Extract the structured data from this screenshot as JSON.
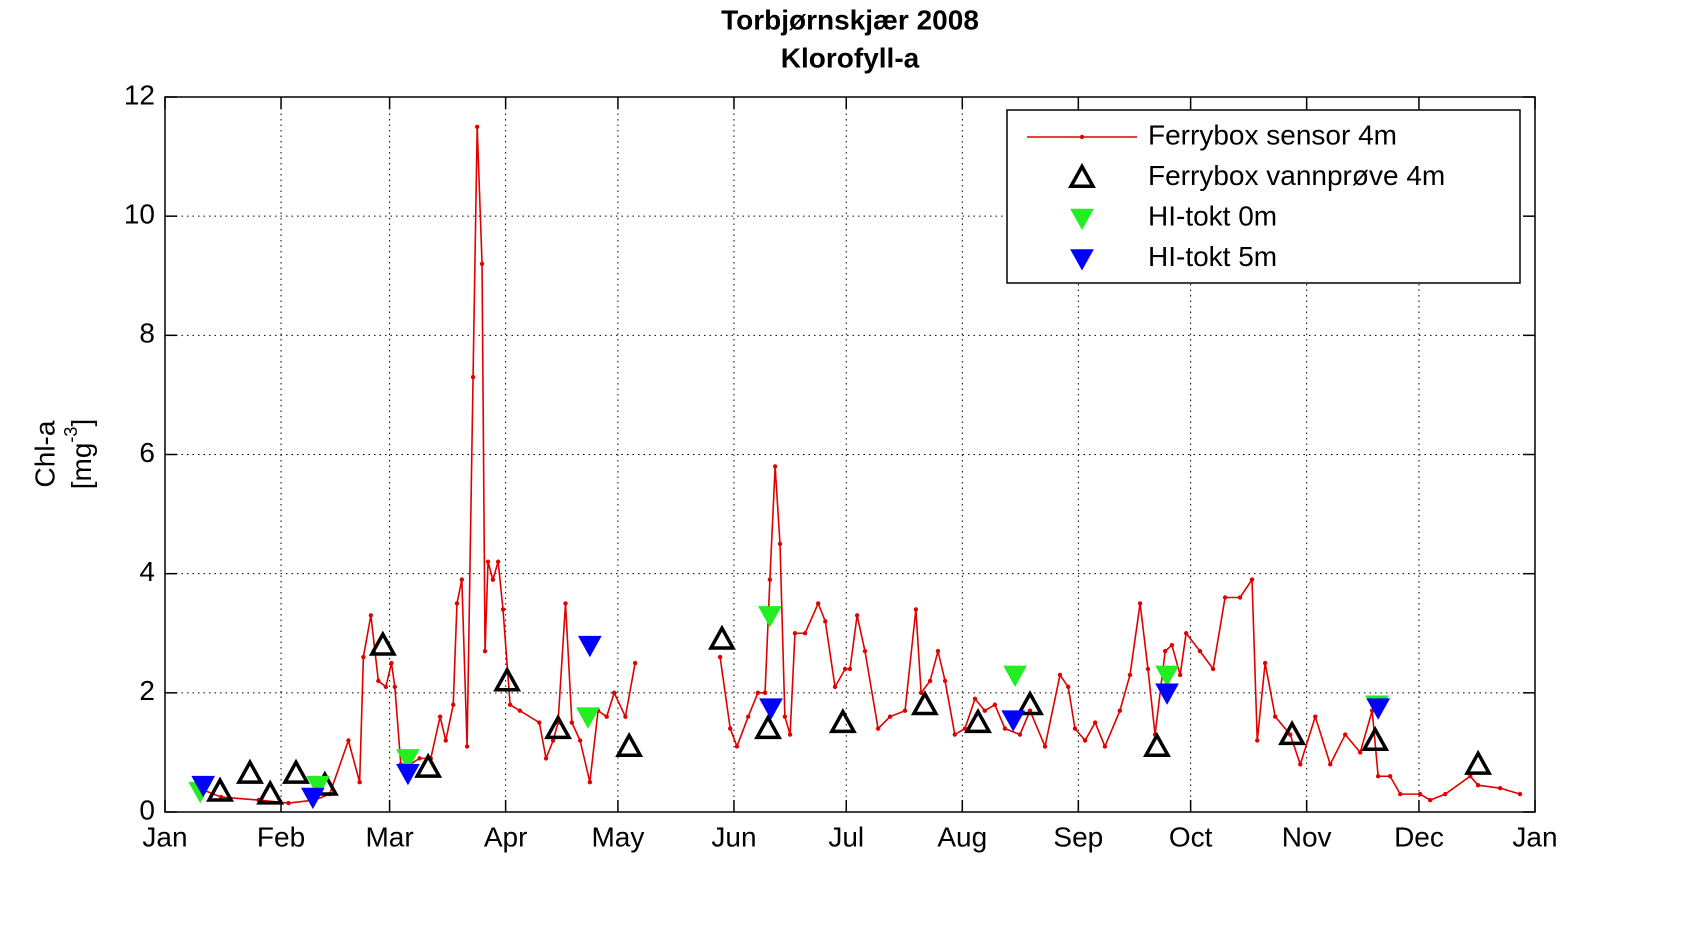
{
  "chart_data": {
    "type": "line",
    "title": "Torbjørnskjær 2008",
    "subtitle": "Klorofyll-a",
    "y_label": {
      "line1": "Chl-a",
      "text": "[mg",
      "sup": "-3",
      "end": "]"
    },
    "xlim": [
      0,
      366
    ],
    "xticks": [
      {
        "value": 0,
        "label": "Jan"
      },
      {
        "value": 31,
        "label": "Feb"
      },
      {
        "value": 60,
        "label": "Mar"
      },
      {
        "value": 91,
        "label": "Apr"
      },
      {
        "value": 121,
        "label": "May"
      },
      {
        "value": 152,
        "label": "Jun"
      },
      {
        "value": 182,
        "label": "Jul"
      },
      {
        "value": 213,
        "label": "Aug"
      },
      {
        "value": 244,
        "label": "Sep"
      },
      {
        "value": 274,
        "label": "Oct"
      },
      {
        "value": 305,
        "label": "Nov"
      },
      {
        "value": 335,
        "label": "Dec"
      },
      {
        "value": 366,
        "label": "Jan"
      }
    ],
    "ylim": [
      0,
      12
    ],
    "yticks": [
      0,
      2,
      4,
      6,
      8,
      10,
      12
    ],
    "grid": true,
    "legend": "upper right",
    "series": [
      {
        "name": "Ferrybox sensor 4m",
        "color": "#e00000",
        "marker": "dot-line",
        "x": [
          9,
          15,
          25,
          33,
          40,
          44,
          49,
          52,
          53,
          55,
          57,
          59,
          60.5,
          61.4,
          63,
          65.5,
          68,
          71,
          73.5,
          75,
          77,
          78,
          79.3,
          80.7,
          82.3,
          83.4,
          84.7,
          85.5,
          86.3,
          87.6,
          89,
          90.3,
          92.2,
          94.8,
          100,
          101.8,
          103.7,
          105,
          107,
          108.7,
          110.9,
          113.5,
          115.7,
          118,
          120,
          123,
          125.6,
          null,
          148.3,
          151,
          152.8,
          155.8,
          158.4,
          160.3,
          161.6,
          163,
          164.3,
          165.6,
          167,
          168.3,
          171,
          174.5,
          176.4,
          179,
          181.7,
          183,
          184.9,
          187,
          190.5,
          193.7,
          197.7,
          200.6,
          202,
          204.4,
          206.5,
          208.4,
          211,
          213.7,
          216.4,
          219,
          221.7,
          224.4,
          228.4,
          231.1,
          235.1,
          239.1,
          241.3,
          243.1,
          245.8,
          248.5,
          251.1,
          255.1,
          257.8,
          260.5,
          262.6,
          264.5,
          267.2,
          269,
          271.2,
          272.8,
          276.5,
          280,
          283.2,
          287.2,
          290.4,
          291.8,
          293.9,
          296.6,
          300.6,
          303.3,
          307.3,
          311.3,
          315.3,
          319.3,
          322.5,
          324.1,
          327.3,
          330,
          335.3,
          338,
          342,
          348.7,
          350.8,
          356.7,
          362
        ],
        "values": [
          0.4,
          0.25,
          0.2,
          0.15,
          0.2,
          0.3,
          1.2,
          0.5,
          2.6,
          3.3,
          2.2,
          2.1,
          2.5,
          2.1,
          0.8,
          0.8,
          0.9,
          0.9,
          1.6,
          1.2,
          1.8,
          3.5,
          3.9,
          1.1,
          7.3,
          11.5,
          9.2,
          2.7,
          4.2,
          3.9,
          4.2,
          3.4,
          1.8,
          1.7,
          1.5,
          0.9,
          1.2,
          1.5,
          3.5,
          1.5,
          1.2,
          0.5,
          1.7,
          1.6,
          2.0,
          1.6,
          2.5,
          null,
          2.6,
          1.4,
          1.1,
          1.6,
          2.0,
          2.0,
          3.9,
          5.8,
          4.5,
          1.6,
          1.3,
          3.0,
          3.0,
          3.5,
          3.2,
          2.1,
          2.4,
          2.4,
          3.3,
          2.7,
          1.4,
          1.6,
          1.7,
          3.4,
          2.0,
          2.2,
          2.7,
          2.2,
          1.3,
          1.4,
          1.9,
          1.7,
          1.8,
          1.4,
          1.3,
          1.7,
          1.1,
          2.3,
          2.1,
          1.4,
          1.2,
          1.5,
          1.1,
          1.7,
          2.3,
          3.5,
          2.4,
          1.3,
          2.7,
          2.8,
          2.3,
          3.0,
          2.7,
          2.4,
          3.6,
          3.6,
          3.9,
          1.2,
          2.5,
          1.6,
          1.3,
          0.8,
          1.6,
          0.8,
          1.3,
          1.0,
          1.7,
          0.6,
          0.6,
          0.3,
          0.3,
          0.2,
          0.3,
          0.6,
          0.45,
          0.4,
          0.3
        ]
      },
      {
        "name": "Ferrybox vannprøve 4m",
        "color": "#000000",
        "marker": "triangle-up",
        "x": [
          14.7,
          22.7,
          28.1,
          35,
          42.7,
          58.2,
          70.3,
          91.4,
          105,
          124,
          148.8,
          161.1,
          181.1,
          203,
          217.2,
          231.1,
          265,
          301.1,
          323.3,
          350.8
        ],
        "values": [
          0.35,
          0.65,
          0.3,
          0.65,
          0.45,
          2.8,
          0.75,
          2.2,
          1.4,
          1.1,
          2.9,
          1.4,
          1.5,
          1.8,
          1.5,
          1.8,
          1.1,
          1.3,
          1.2,
          0.8
        ]
      },
      {
        "name": "HI-tokt 0m",
        "color": "#22ee22",
        "marker": "triangle-down",
        "x": [
          9.4,
          40.9,
          64.9,
          113,
          161.6,
          227.1,
          267.7,
          323.8
        ],
        "values": [
          0.35,
          0.45,
          0.9,
          1.6,
          3.3,
          2.3,
          2.3,
          1.8
        ]
      },
      {
        "name": "HI-tokt 5m",
        "color": "#0000ff",
        "marker": "triangle-down",
        "x": [
          10.2,
          39.5,
          64.9,
          113.5,
          161.9,
          226.6,
          267.7,
          324.1
        ],
        "values": [
          0.45,
          0.25,
          0.65,
          2.8,
          1.75,
          1.55,
          2.0,
          1.75
        ]
      }
    ]
  }
}
